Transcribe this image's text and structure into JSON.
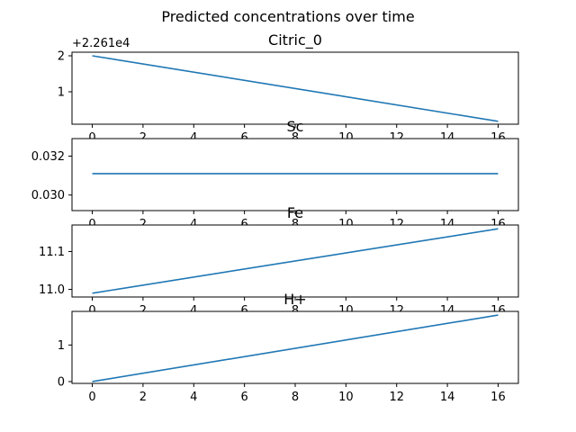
{
  "chart_data": {
    "type": "line",
    "title": "Predicted concentrations over time",
    "line_color": "#1f77b4",
    "grid": false,
    "xlim": [
      -0.8,
      16.8
    ],
    "xticks": [
      0,
      2,
      4,
      6,
      8,
      10,
      12,
      14,
      16
    ],
    "subplots": [
      {
        "title": "Citric_0",
        "offset_label": "+2.261e4",
        "ylim": [
          0.1,
          2.1
        ],
        "yticks": [
          1,
          2
        ],
        "ytick_labels": [
          "1",
          "2"
        ],
        "x": [
          0,
          16
        ],
        "y": [
          2.0,
          0.18
        ]
      },
      {
        "title": "Sc",
        "offset_label": "",
        "ylim": [
          0.0292,
          0.0329
        ],
        "yticks": [
          0.03,
          0.032
        ],
        "ytick_labels": [
          "0.030",
          "0.032"
        ],
        "x": [
          0,
          16
        ],
        "y": [
          0.0311,
          0.0311
        ]
      },
      {
        "title": "Fe",
        "offset_label": "",
        "ylim": [
          10.98,
          11.17
        ],
        "yticks": [
          11.0,
          11.1
        ],
        "ytick_labels": [
          "11.0",
          "11.1"
        ],
        "x": [
          0,
          16
        ],
        "y": [
          10.99,
          11.16
        ]
      },
      {
        "title": "H+",
        "offset_label": "",
        "ylim": [
          -0.05,
          1.92
        ],
        "yticks": [
          0,
          1
        ],
        "ytick_labels": [
          "0",
          "1"
        ],
        "x": [
          0,
          16
        ],
        "y": [
          0.0,
          1.82
        ]
      }
    ]
  }
}
